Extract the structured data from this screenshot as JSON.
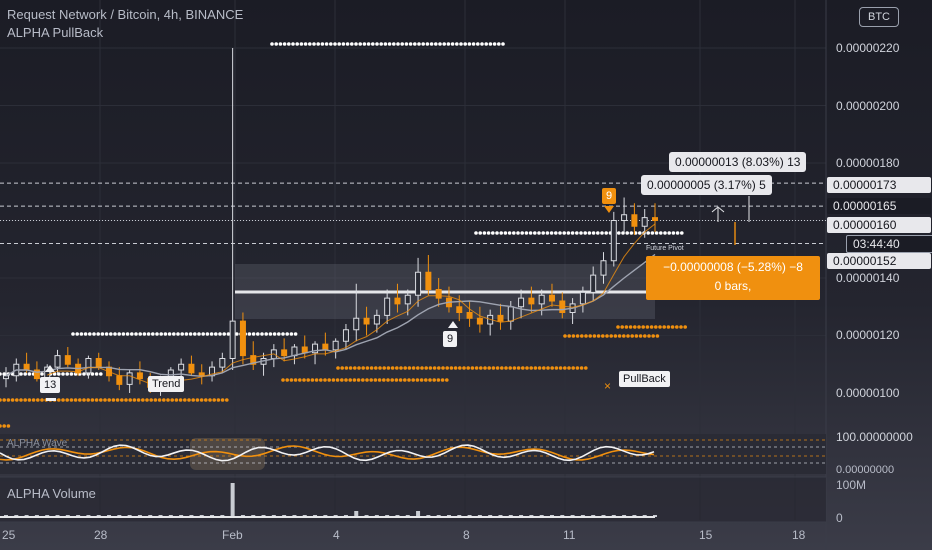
{
  "header": {
    "title": "Request Network / Bitcoin, 4h, BINANCE",
    "indicator": "ALPHA PullBack",
    "currency_badge": "BTC"
  },
  "chart_data": {
    "type": "candlestick",
    "symbol": "Request Network / Bitcoin",
    "interval": "4h",
    "exchange": "BINANCE",
    "ylim": [
      8.2e-07,
      2.32e-06
    ],
    "y_ticks": [
      "0.00000220",
      "0.00000200",
      "0.00000180",
      "0.00000160",
      "0.00000140",
      "0.00000120",
      "0.00000100"
    ],
    "x_ticks": [
      "25",
      "28",
      "Feb",
      "4",
      "8",
      "11",
      "15",
      "18"
    ],
    "price_labels": {
      "upper_target": "0.00000173",
      "dashed_level": "0.00000165",
      "current_price": "0.00000160",
      "countdown": "03:44:40",
      "lower_level": "0.00000152"
    },
    "measure_up_long": "0.00000013 (8.03%) 13",
    "measure_up_short": "0.00000005 (3.17%) 5",
    "measure_down": "−0.00000008 (−5.28%) −8",
    "measure_down_bars": "0 bars,",
    "markers": {
      "count_13": "13",
      "count_9_low": "9",
      "count_9_high": "9",
      "trend_tag": "Trend",
      "pullback_tag": "PullBack",
      "future_pivot": "Future Pivot"
    },
    "candles": [
      [
        1.05,
        1.09,
        1.02,
        1.06
      ],
      [
        1.06,
        1.12,
        1.04,
        1.1
      ],
      [
        1.1,
        1.14,
        1.07,
        1.08
      ],
      [
        1.08,
        1.11,
        1.04,
        1.05
      ],
      [
        1.05,
        1.1,
        1.03,
        1.09
      ],
      [
        1.09,
        1.15,
        1.07,
        1.13
      ],
      [
        1.13,
        1.16,
        1.09,
        1.1
      ],
      [
        1.1,
        1.12,
        1.06,
        1.07
      ],
      [
        1.07,
        1.13,
        1.05,
        1.12
      ],
      [
        1.12,
        1.14,
        1.08,
        1.09
      ],
      [
        1.09,
        1.11,
        1.04,
        1.06
      ],
      [
        1.06,
        1.09,
        1.01,
        1.03
      ],
      [
        1.03,
        1.08,
        1.0,
        1.07
      ],
      [
        1.07,
        1.11,
        1.03,
        1.05
      ],
      [
        1.05,
        1.07,
        1.0,
        1.02
      ],
      [
        1.02,
        1.06,
        0.99,
        1.04
      ],
      [
        1.04,
        1.09,
        1.02,
        1.08
      ],
      [
        1.08,
        1.12,
        1.05,
        1.1
      ],
      [
        1.1,
        1.13,
        1.06,
        1.07
      ],
      [
        1.07,
        1.1,
        1.03,
        1.06
      ],
      [
        1.06,
        1.11,
        1.04,
        1.09
      ],
      [
        1.09,
        1.14,
        1.07,
        1.12
      ],
      [
        1.12,
        2.2,
        1.08,
        1.25
      ],
      [
        1.25,
        1.28,
        1.1,
        1.13
      ],
      [
        1.13,
        1.18,
        1.08,
        1.1
      ],
      [
        1.1,
        1.14,
        1.06,
        1.12
      ],
      [
        1.12,
        1.17,
        1.09,
        1.15
      ],
      [
        1.15,
        1.19,
        1.11,
        1.13
      ],
      [
        1.13,
        1.17,
        1.1,
        1.16
      ],
      [
        1.16,
        1.2,
        1.12,
        1.14
      ],
      [
        1.14,
        1.18,
        1.1,
        1.17
      ],
      [
        1.17,
        1.21,
        1.13,
        1.15
      ],
      [
        1.15,
        1.19,
        1.12,
        1.18
      ],
      [
        1.18,
        1.24,
        1.15,
        1.22
      ],
      [
        1.22,
        1.38,
        1.18,
        1.26
      ],
      [
        1.26,
        1.3,
        1.2,
        1.24
      ],
      [
        1.24,
        1.29,
        1.21,
        1.27
      ],
      [
        1.27,
        1.36,
        1.24,
        1.33
      ],
      [
        1.33,
        1.38,
        1.28,
        1.31
      ],
      [
        1.31,
        1.36,
        1.27,
        1.34
      ],
      [
        1.34,
        1.47,
        1.3,
        1.42
      ],
      [
        1.42,
        1.48,
        1.34,
        1.36
      ],
      [
        1.36,
        1.4,
        1.3,
        1.33
      ],
      [
        1.33,
        1.37,
        1.28,
        1.3
      ],
      [
        1.3,
        1.34,
        1.25,
        1.28
      ],
      [
        1.28,
        1.32,
        1.23,
        1.26
      ],
      [
        1.26,
        1.3,
        1.21,
        1.24
      ],
      [
        1.24,
        1.29,
        1.2,
        1.27
      ],
      [
        1.27,
        1.31,
        1.22,
        1.25
      ],
      [
        1.25,
        1.32,
        1.22,
        1.3
      ],
      [
        1.3,
        1.36,
        1.26,
        1.33
      ],
      [
        1.33,
        1.37,
        1.28,
        1.31
      ],
      [
        1.31,
        1.36,
        1.27,
        1.34
      ],
      [
        1.34,
        1.38,
        1.3,
        1.32
      ],
      [
        1.32,
        1.35,
        1.26,
        1.28
      ],
      [
        1.28,
        1.33,
        1.24,
        1.31
      ],
      [
        1.31,
        1.37,
        1.28,
        1.35
      ],
      [
        1.35,
        1.44,
        1.32,
        1.41
      ],
      [
        1.41,
        1.49,
        1.38,
        1.46
      ],
      [
        1.46,
        1.63,
        1.44,
        1.6
      ],
      [
        1.6,
        1.68,
        1.56,
        1.62
      ],
      [
        1.62,
        1.66,
        1.55,
        1.58
      ],
      [
        1.58,
        1.64,
        1.54,
        1.61
      ],
      [
        1.61,
        1.66,
        1.56,
        1.6
      ]
    ]
  },
  "volume_pane": {
    "label": "ALPHA Volume",
    "axis_top": "100M",
    "axis_zero": "0"
  },
  "oscillator_pane": {
    "label": "ALPHA Wave",
    "axis_top": "100.00000000",
    "axis_zero": "0.00000000"
  },
  "colors": {
    "background": "#1c1d26",
    "orange": "#f0900f",
    "white_dots": "#ffffff",
    "ma_line": "#9ea3b0",
    "grid": "#2c2e38"
  }
}
